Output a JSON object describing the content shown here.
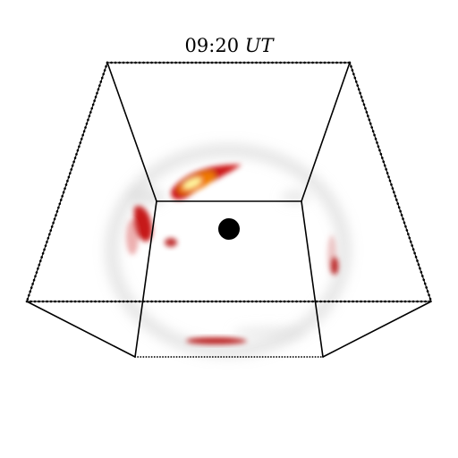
{
  "title": {
    "time": "09:20",
    "unit": "UT"
  },
  "colors": {
    "edges": "#000000",
    "emission_core": "#fff9a0",
    "emission_mid": "#f08a00",
    "emission_outer": "#c00000",
    "halo": "#b8b8b8",
    "central_body": "#000000"
  }
}
